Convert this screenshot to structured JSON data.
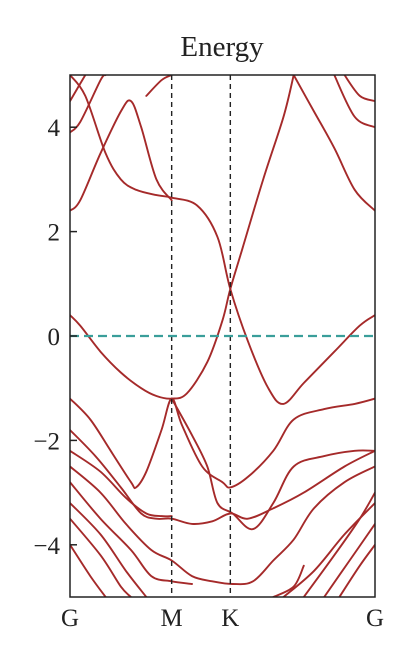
{
  "chart_data": {
    "type": "line",
    "title": "Energy",
    "xlabel": "",
    "ylabel": "",
    "ylim": [
      -5,
      5
    ],
    "xlim": [
      0,
      3
    ],
    "grid": false,
    "legend": "none",
    "y_ticks": [
      "−4",
      "−2",
      "0",
      "2",
      "4"
    ],
    "y_tick_values": [
      -4,
      -2,
      0,
      2,
      4
    ],
    "x_ticks": [
      {
        "label": "G",
        "x": 0
      },
      {
        "label": "M",
        "x": 1
      },
      {
        "label": "K",
        "x": 1.577
      },
      {
        "label": "G",
        "x": 3
      }
    ],
    "vertical_markers": [
      1,
      1.577
    ],
    "fermi_level": 0,
    "colors": {
      "bands": "#a52a2a",
      "fermi": "#3a9e9a",
      "markers": "#222222",
      "axes": "#222222"
    },
    "series": [
      {
        "values": [
          [
            0,
            5.0
          ],
          [
            0.15,
            4.6
          ],
          [
            0.35,
            3.5
          ],
          [
            0.5,
            3.0
          ],
          [
            0.65,
            2.8
          ],
          [
            0.85,
            2.7
          ],
          [
            1.0,
            2.65
          ],
          [
            1.25,
            2.5
          ],
          [
            1.45,
            1.9
          ],
          [
            1.577,
            0.9
          ],
          [
            1.75,
            -0.1
          ],
          [
            1.95,
            -1.0
          ],
          [
            2.1,
            -1.3
          ],
          [
            2.3,
            -0.9
          ],
          [
            2.6,
            -0.3
          ],
          [
            2.85,
            0.2
          ],
          [
            3.0,
            0.4
          ]
        ]
      },
      {
        "values": [
          [
            0,
            0.4
          ],
          [
            0.1,
            0.2
          ],
          [
            0.3,
            -0.3
          ],
          [
            0.5,
            -0.7
          ],
          [
            0.7,
            -1.0
          ],
          [
            0.85,
            -1.15
          ],
          [
            1.0,
            -1.2
          ],
          [
            1.15,
            -1.1
          ],
          [
            1.35,
            -0.5
          ],
          [
            1.5,
            0.3
          ],
          [
            1.577,
            0.9
          ],
          [
            1.7,
            1.7
          ],
          [
            1.9,
            3.0
          ],
          [
            2.1,
            4.2
          ],
          [
            2.2,
            5.0
          ]
        ]
      },
      {
        "values": [
          [
            0,
            2.4
          ],
          [
            0.1,
            2.6
          ],
          [
            0.3,
            3.5
          ],
          [
            0.5,
            4.3
          ],
          [
            0.6,
            4.5
          ],
          [
            0.7,
            4.0
          ],
          [
            0.85,
            3.0
          ],
          [
            1.0,
            2.6
          ]
        ]
      },
      {
        "values": [
          [
            2.2,
            5.0
          ],
          [
            2.4,
            4.3
          ],
          [
            2.6,
            3.6
          ],
          [
            2.8,
            2.8
          ],
          [
            3.0,
            2.4
          ]
        ]
      },
      {
        "values": [
          [
            0,
            3.9
          ],
          [
            0.1,
            4.1
          ],
          [
            0.3,
            4.9
          ],
          [
            0.35,
            5.0
          ]
        ]
      },
      {
        "values": [
          [
            0,
            4.5
          ],
          [
            0.15,
            5.0
          ]
        ]
      },
      {
        "values": [
          [
            0.75,
            4.6
          ],
          [
            0.9,
            4.9
          ],
          [
            1.0,
            5.0
          ]
        ]
      },
      {
        "values": [
          [
            2.7,
            5.0
          ],
          [
            2.85,
            4.6
          ],
          [
            3.0,
            4.5
          ]
        ]
      },
      {
        "values": [
          [
            2.6,
            5.0
          ],
          [
            2.8,
            4.2
          ],
          [
            3.0,
            4.0
          ]
        ]
      },
      {
        "values": [
          [
            0,
            -1.2
          ],
          [
            0.2,
            -1.6
          ],
          [
            0.4,
            -2.2
          ],
          [
            0.6,
            -2.8
          ],
          [
            0.65,
            -2.9
          ],
          [
            0.75,
            -2.6
          ],
          [
            0.9,
            -1.8
          ],
          [
            1.0,
            -1.2
          ],
          [
            1.1,
            -1.7
          ],
          [
            1.3,
            -2.5
          ],
          [
            1.5,
            -2.8
          ],
          [
            1.577,
            -2.9
          ],
          [
            1.75,
            -2.7
          ],
          [
            2.0,
            -2.2
          ],
          [
            2.2,
            -1.6
          ],
          [
            2.5,
            -1.4
          ],
          [
            2.8,
            -1.3
          ],
          [
            3.0,
            -1.2
          ]
        ]
      },
      {
        "values": [
          [
            0,
            -1.8
          ],
          [
            0.25,
            -2.3
          ],
          [
            0.5,
            -2.9
          ],
          [
            0.7,
            -3.4
          ],
          [
            0.85,
            -3.5
          ],
          [
            1.0,
            -3.5
          ],
          [
            1.2,
            -3.6
          ],
          [
            1.4,
            -3.55
          ],
          [
            1.577,
            -3.4
          ],
          [
            1.75,
            -3.5
          ],
          [
            2.0,
            -3.3
          ],
          [
            2.3,
            -3.0
          ],
          [
            2.7,
            -2.5
          ],
          [
            3.0,
            -2.2
          ]
        ]
      },
      {
        "values": [
          [
            0,
            -2.2
          ],
          [
            0.3,
            -2.6
          ],
          [
            0.55,
            -3.1
          ],
          [
            0.75,
            -3.4
          ],
          [
            0.9,
            -3.45
          ],
          [
            1.0,
            -3.45
          ]
        ]
      },
      {
        "values": [
          [
            1.0,
            -1.2
          ],
          [
            1.2,
            -1.9
          ],
          [
            1.35,
            -2.5
          ],
          [
            1.45,
            -3.2
          ],
          [
            1.6,
            -3.4
          ],
          [
            1.8,
            -3.7
          ],
          [
            2.0,
            -3.2
          ],
          [
            2.2,
            -2.5
          ],
          [
            2.5,
            -2.3
          ],
          [
            2.8,
            -2.2
          ],
          [
            3.0,
            -2.2
          ]
        ]
      },
      {
        "values": [
          [
            0,
            -2.5
          ],
          [
            0.3,
            -3.0
          ],
          [
            0.55,
            -3.6
          ],
          [
            0.8,
            -4.1
          ],
          [
            1.0,
            -4.3
          ],
          [
            1.2,
            -4.6
          ],
          [
            1.4,
            -4.7
          ],
          [
            1.6,
            -4.75
          ],
          [
            1.8,
            -4.7
          ],
          [
            2.0,
            -4.3
          ],
          [
            2.2,
            -3.9
          ],
          [
            2.4,
            -3.3
          ],
          [
            2.7,
            -2.8
          ],
          [
            3.0,
            -2.5
          ]
        ]
      },
      {
        "values": [
          [
            0,
            -2.8
          ],
          [
            0.3,
            -3.5
          ],
          [
            0.6,
            -4.1
          ],
          [
            0.8,
            -4.6
          ],
          [
            1.0,
            -4.7
          ],
          [
            1.2,
            -4.75
          ]
        ]
      },
      {
        "values": [
          [
            0,
            -3.2
          ],
          [
            0.3,
            -3.8
          ],
          [
            0.55,
            -4.5
          ],
          [
            0.75,
            -5.0
          ]
        ]
      },
      {
        "values": [
          [
            0,
            -3.5
          ],
          [
            0.3,
            -4.2
          ],
          [
            0.5,
            -4.8
          ],
          [
            0.6,
            -5.0
          ]
        ]
      },
      {
        "values": [
          [
            0,
            -4.0
          ],
          [
            0.2,
            -4.6
          ],
          [
            0.35,
            -5.0
          ]
        ]
      },
      {
        "values": [
          [
            2.1,
            -5.0
          ],
          [
            2.4,
            -4.5
          ],
          [
            2.7,
            -3.8
          ],
          [
            3.0,
            -3.2
          ]
        ]
      },
      {
        "values": [
          [
            2.3,
            -5.0
          ],
          [
            2.6,
            -4.2
          ],
          [
            2.85,
            -3.5
          ],
          [
            3.0,
            -3.0
          ]
        ]
      },
      {
        "values": [
          [
            2.5,
            -5.0
          ],
          [
            2.75,
            -4.3
          ],
          [
            3.0,
            -3.6
          ]
        ]
      },
      {
        "values": [
          [
            2.65,
            -5.0
          ],
          [
            2.85,
            -4.4
          ],
          [
            3.0,
            -4.0
          ]
        ]
      },
      {
        "values": [
          [
            2.0,
            -5.0
          ],
          [
            2.2,
            -4.8
          ],
          [
            2.3,
            -4.4
          ]
        ]
      }
    ]
  }
}
